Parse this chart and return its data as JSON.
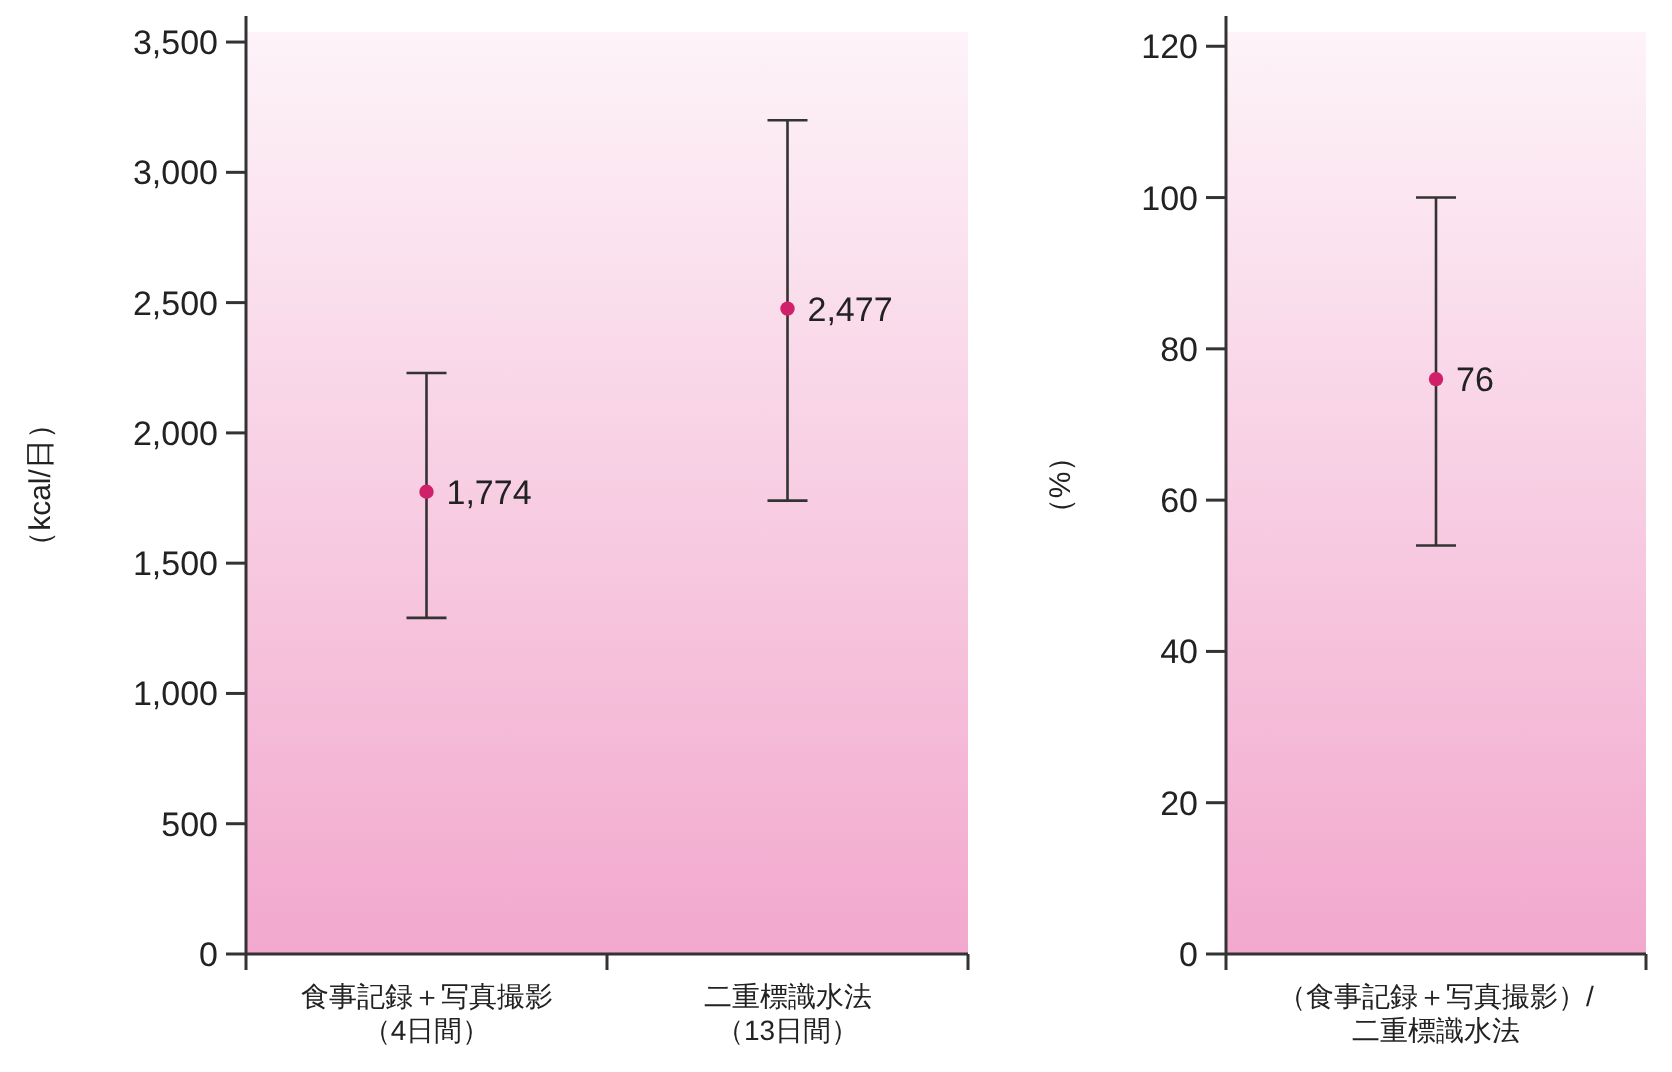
{
  "chart_data": [
    {
      "type": "scatter",
      "ylabel": "（kcal/日）",
      "categories": [
        "食事記録＋写真撮影（4日間）",
        "二重標識水法（13日間）"
      ],
      "series": [
        {
          "color": "#d0206a",
          "values": [
            1774,
            2477
          ],
          "errors": [
            [
              1290,
              2230
            ],
            [
              1740,
              3200
            ]
          ],
          "value_labels": [
            "1,774",
            "2,477"
          ]
        }
      ],
      "ylim": [
        0,
        3600
      ],
      "yticks": [
        0,
        {
          "value": 500,
          "label": "500"
        },
        {
          "value": 1000,
          "label": "1,000"
        },
        {
          "value": 1500,
          "label": "1,500"
        },
        {
          "value": 2000,
          "label": "2,000"
        },
        {
          "value": 2500,
          "label": "2,500"
        },
        {
          "value": 3000,
          "label": "3,000"
        },
        {
          "value": 3500,
          "label": "3,500"
        }
      ],
      "marker": "circle",
      "grid": false
    },
    {
      "type": "scatter",
      "ylabel": "（%）",
      "categories": [
        "（食事記録＋写真撮影）/二重標識水法"
      ],
      "series": [
        {
          "color": "#d0206a",
          "values": [
            76
          ],
          "errors": [
            [
              54,
              100
            ]
          ],
          "value_labels": [
            "76"
          ]
        }
      ],
      "ylim": [
        0,
        124
      ],
      "yticks": [
        0,
        20,
        40,
        60,
        80,
        100,
        120
      ],
      "marker": "circle",
      "grid": false
    }
  ]
}
